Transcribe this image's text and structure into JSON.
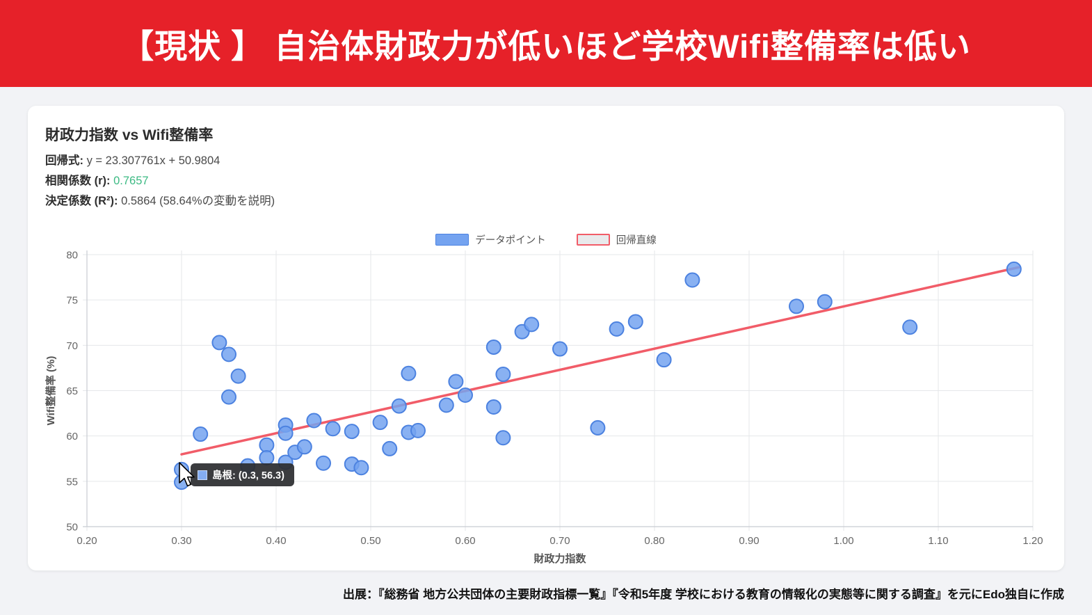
{
  "banner": {
    "title": "【現状 】 自治体財政力が低いほど学校Wifi整備率は低い",
    "bg_color": "#e62129"
  },
  "card": {
    "title": "財政力指数 vs Wifi整備率",
    "stats": [
      {
        "label": "回帰式:",
        "value": "y = 23.307761x + 50.9804"
      },
      {
        "label": "相関係数 (r):",
        "value": "0.7657"
      },
      {
        "label": "決定係数 (R²):",
        "value": "0.5864 (58.64%の変動を説明)"
      }
    ],
    "legend": [
      {
        "label": "データポイント",
        "swatch": "blue-fill"
      },
      {
        "label": "回帰直線",
        "swatch": "red-outline"
      }
    ]
  },
  "tooltip": {
    "point_name": "島根",
    "text": "島根: (0.3, 56.3)"
  },
  "footer": {
    "source": "出展：『総務省 地方公共団体の主要財政指標一覧』『令和5年度 学校における教育の情報化の実態等に関する調査』を元にEdo独自に作成"
  },
  "chart_data": {
    "type": "scatter",
    "title": "財政力指数 vs Wifi整備率",
    "xlabel": "財政力指数",
    "ylabel": "Wifi整備率 (%)",
    "xlim": [
      0.2,
      1.2
    ],
    "ylim": [
      50,
      80
    ],
    "xtick_labels": [
      "0.20",
      "0.30",
      "0.40",
      "0.50",
      "0.60",
      "0.70",
      "0.80",
      "0.90",
      "1.00",
      "1.10",
      "1.20"
    ],
    "ytick_labels": [
      "50",
      "55",
      "60",
      "65",
      "70",
      "75",
      "80"
    ],
    "grid": true,
    "legend_position": "top-center",
    "points": [
      [
        0.3,
        56.3
      ],
      [
        0.3,
        54.9
      ],
      [
        0.32,
        60.2
      ],
      [
        0.34,
        70.3
      ],
      [
        0.35,
        69.0
      ],
      [
        0.36,
        66.6
      ],
      [
        0.35,
        64.3
      ],
      [
        0.37,
        56.7
      ],
      [
        0.39,
        59.0
      ],
      [
        0.39,
        57.6
      ],
      [
        0.41,
        61.2
      ],
      [
        0.41,
        60.3
      ],
      [
        0.41,
        57.1
      ],
      [
        0.42,
        58.2
      ],
      [
        0.43,
        58.8
      ],
      [
        0.44,
        61.7
      ],
      [
        0.45,
        57.0
      ],
      [
        0.46,
        60.8
      ],
      [
        0.48,
        60.5
      ],
      [
        0.48,
        56.9
      ],
      [
        0.49,
        56.5
      ],
      [
        0.51,
        61.5
      ],
      [
        0.52,
        58.6
      ],
      [
        0.53,
        63.3
      ],
      [
        0.54,
        66.9
      ],
      [
        0.54,
        60.4
      ],
      [
        0.55,
        60.6
      ],
      [
        0.58,
        63.4
      ],
      [
        0.59,
        66.0
      ],
      [
        0.6,
        64.5
      ],
      [
        0.63,
        69.8
      ],
      [
        0.63,
        63.2
      ],
      [
        0.64,
        66.8
      ],
      [
        0.64,
        59.8
      ],
      [
        0.66,
        71.5
      ],
      [
        0.67,
        72.3
      ],
      [
        0.7,
        69.6
      ],
      [
        0.74,
        60.9
      ],
      [
        0.76,
        71.8
      ],
      [
        0.78,
        72.6
      ],
      [
        0.81,
        68.4
      ],
      [
        0.84,
        77.2
      ],
      [
        0.95,
        74.3
      ],
      [
        0.98,
        74.8
      ],
      [
        1.07,
        72.0
      ],
      [
        1.18,
        78.4
      ]
    ],
    "highlighted_point": {
      "name": "島根",
      "x": 0.3,
      "y": 56.3
    },
    "regression": {
      "equation": "y = 23.307761x + 50.9804",
      "slope": 23.307761,
      "intercept": 50.9804,
      "r": 0.7657,
      "r_squared": 0.5864,
      "x_start": 0.3,
      "x_end": 1.185
    },
    "colors": {
      "point_fill": "#74a3f0",
      "point_border": "#4c82e0",
      "regression_line": "#f15c68",
      "gridline": "#e5e7ea",
      "axis_border": "#c8ccd2",
      "tick_text": "#666666",
      "axis_title_text": "#555555",
      "r_value_green": "#3cba83",
      "banner_red": "#e62129"
    }
  }
}
